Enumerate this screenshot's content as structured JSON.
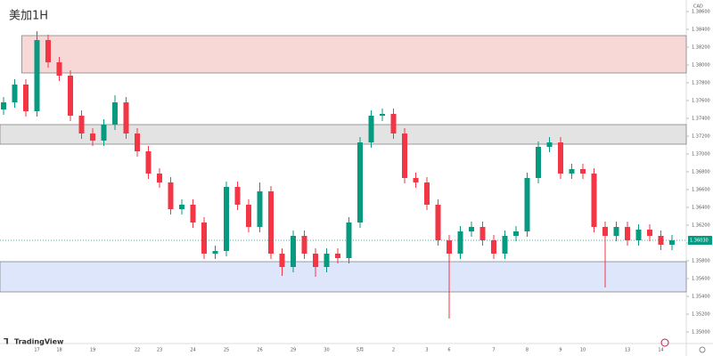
{
  "chart_data": {
    "type": "candlestick",
    "title": "美加1H",
    "currency": "CAD",
    "brand": "TradingView",
    "ylim": [
      1.3488,
      1.3873
    ],
    "yticks": [
      {
        "value": 1.35,
        "label": "1.35000"
      },
      {
        "value": 1.352,
        "label": "1.35200"
      },
      {
        "value": 1.354,
        "label": "1.35400"
      },
      {
        "value": 1.356,
        "label": "1.35600"
      },
      {
        "value": 1.358,
        "label": "1.35800"
      },
      {
        "value": 1.36,
        "label": "1.36000"
      },
      {
        "value": 1.362,
        "label": "1.36200"
      },
      {
        "value": 1.364,
        "label": "1.36400"
      },
      {
        "value": 1.366,
        "label": "1.36600"
      },
      {
        "value": 1.368,
        "label": "1.36800"
      },
      {
        "value": 1.37,
        "label": "1.37000"
      },
      {
        "value": 1.372,
        "label": "1.37200"
      },
      {
        "value": 1.374,
        "label": "1.37400"
      },
      {
        "value": 1.376,
        "label": "1.37600"
      },
      {
        "value": 1.378,
        "label": "1.37800"
      },
      {
        "value": 1.38,
        "label": "1.38000"
      },
      {
        "value": 1.382,
        "label": "1.38200"
      },
      {
        "value": 1.384,
        "label": "1.38400"
      },
      {
        "value": 1.386,
        "label": "1.38600"
      }
    ],
    "categories": [
      null,
      null,
      null,
      "17",
      null,
      "18",
      null,
      null,
      "19",
      null,
      null,
      null,
      "22",
      null,
      "23",
      null,
      null,
      "24",
      null,
      null,
      "25",
      null,
      null,
      "26",
      null,
      null,
      "29",
      null,
      null,
      "30",
      null,
      null,
      "5月",
      null,
      null,
      "2",
      null,
      null,
      "3",
      null,
      "6",
      null,
      null,
      null,
      "7",
      null,
      null,
      "8",
      null,
      null,
      "9",
      null,
      "10",
      null,
      null,
      null,
      "13",
      null,
      null,
      "14",
      null
    ],
    "up_color": "#089981",
    "down_color": "#f23645",
    "open": [
      1.375,
      1.3758,
      1.3778,
      1.3748,
      1.3828,
      1.3803,
      1.3788,
      1.3743,
      1.3723,
      1.3715,
      1.3733,
      1.3758,
      1.3723,
      1.3703,
      1.3678,
      1.3668,
      1.3638,
      1.3643,
      1.3623,
      1.3588,
      1.3591,
      1.3663,
      1.3643,
      1.3618,
      1.3658,
      1.3588,
      1.3573,
      1.3608,
      1.3588,
      1.3573,
      1.3588,
      1.3583,
      1.3623,
      1.3713,
      1.3743,
      1.3745,
      1.3723,
      1.3673,
      1.3668,
      1.3643,
      1.3603,
      1.3588,
      1.3613,
      1.3618,
      1.3603,
      1.3588,
      1.3608,
      1.3613,
      1.3673,
      1.3708,
      1.3713,
      1.3678,
      1.3683,
      1.3678,
      1.3618,
      1.3608,
      1.3618,
      1.3603,
      1.3615,
      1.3608,
      1.3598
    ],
    "high": [
      1.3764,
      1.3784,
      1.3784,
      1.3838,
      1.3834,
      1.3809,
      1.3794,
      1.3749,
      1.3729,
      1.3739,
      1.3766,
      1.3764,
      1.3729,
      1.3709,
      1.3684,
      1.3674,
      1.3649,
      1.3649,
      1.3629,
      1.3597,
      1.3669,
      1.3669,
      1.3649,
      1.3668,
      1.3664,
      1.3594,
      1.3614,
      1.3614,
      1.3594,
      1.3594,
      1.3594,
      1.3629,
      1.3719,
      1.3749,
      1.3751,
      1.3751,
      1.3729,
      1.3679,
      1.3674,
      1.3649,
      1.3609,
      1.3619,
      1.3624,
      1.3624,
      1.3609,
      1.3614,
      1.3619,
      1.3679,
      1.3714,
      1.3719,
      1.3719,
      1.3689,
      1.3689,
      1.3684,
      1.3624,
      1.3624,
      1.3624,
      1.3621,
      1.3621,
      1.3614,
      1.3609
    ],
    "low": [
      1.3744,
      1.3752,
      1.3742,
      1.3742,
      1.3797,
      1.3782,
      1.3737,
      1.3717,
      1.3709,
      1.3709,
      1.3727,
      1.3717,
      1.3697,
      1.3672,
      1.3662,
      1.3632,
      1.3632,
      1.3617,
      1.3582,
      1.3582,
      1.3585,
      1.3637,
      1.3612,
      1.3612,
      1.3582,
      1.3563,
      1.3567,
      1.3582,
      1.3562,
      1.3567,
      1.3577,
      1.3577,
      1.3617,
      1.3707,
      1.3737,
      1.3717,
      1.3667,
      1.3662,
      1.3637,
      1.3597,
      1.3515,
      1.3582,
      1.3607,
      1.3597,
      1.3582,
      1.3582,
      1.3602,
      1.3607,
      1.3667,
      1.3702,
      1.3672,
      1.3672,
      1.3672,
      1.3612,
      1.355,
      1.3602,
      1.3597,
      1.3597,
      1.3602,
      1.3592,
      1.3592
    ],
    "close": [
      1.3758,
      1.3778,
      1.3748,
      1.3828,
      1.3803,
      1.3788,
      1.3743,
      1.3723,
      1.3715,
      1.3733,
      1.3758,
      1.3723,
      1.3703,
      1.3678,
      1.3668,
      1.3638,
      1.3643,
      1.3623,
      1.3588,
      1.3591,
      1.3663,
      1.3643,
      1.3618,
      1.3658,
      1.3588,
      1.3573,
      1.3608,
      1.3588,
      1.3573,
      1.3588,
      1.3583,
      1.3623,
      1.3713,
      1.3743,
      1.3745,
      1.3723,
      1.3673,
      1.3668,
      1.3643,
      1.3603,
      1.3588,
      1.3613,
      1.3618,
      1.3603,
      1.3588,
      1.3608,
      1.3613,
      1.3673,
      1.3708,
      1.3713,
      1.3678,
      1.3683,
      1.3678,
      1.3618,
      1.3608,
      1.3618,
      1.3603,
      1.3615,
      1.3608,
      1.3598,
      1.3603
    ],
    "last_price_label": "1.36030",
    "zones": [
      {
        "from": 1.3791,
        "to": 1.3833,
        "color": "#f8d7d7",
        "start_index": 1
      },
      {
        "from": 1.3711,
        "to": 1.3733,
        "color": "#e3e3e3",
        "start_index": 0
      },
      {
        "from": 1.3545,
        "to": 1.3579,
        "color": "#dde6fb",
        "start_index": 0
      }
    ]
  }
}
